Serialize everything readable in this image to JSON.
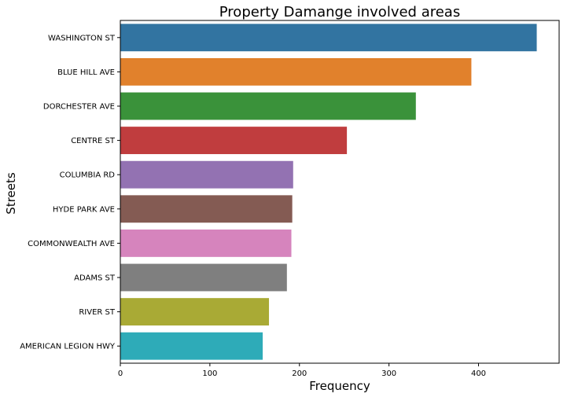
{
  "chart_data": {
    "type": "bar",
    "orientation": "horizontal",
    "title": "Property Damange involved areas",
    "xlabel": "Frequency",
    "ylabel": "Streets",
    "xlim": [
      0,
      490
    ],
    "xticks": [
      0,
      100,
      200,
      300,
      400
    ],
    "grid": false,
    "categories": [
      "WASHINGTON ST",
      "BLUE HILL AVE",
      "DORCHESTER AVE",
      "CENTRE ST",
      "COLUMBIA RD",
      "HYDE PARK AVE",
      "COMMONWEALTH AVE",
      "ADAMS ST",
      "RIVER ST",
      "AMERICAN LEGION HWY"
    ],
    "values": [
      465,
      392,
      330,
      253,
      193,
      192,
      191,
      186,
      166,
      159
    ],
    "colors": [
      "#3274a1",
      "#e1812c",
      "#3a923a",
      "#c03d3e",
      "#9372b2",
      "#845b53",
      "#d684bd",
      "#7f7f7f",
      "#a9aa35",
      "#2eabb8"
    ]
  }
}
